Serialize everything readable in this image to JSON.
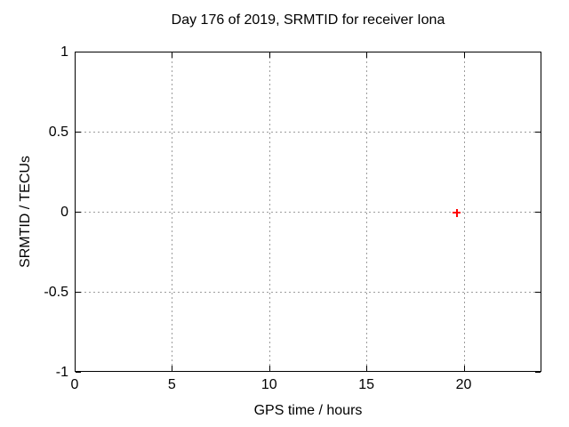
{
  "figure": {
    "background": "#ffffff",
    "text_color": "#000000",
    "axis_color": "#000000"
  },
  "chart_data": {
    "type": "scatter",
    "title": "Day 176 of 2019, SRMTID for receiver Iona",
    "xlabel": "GPS time / hours",
    "ylabel": "SRMTID / TECUs",
    "xlim": [
      0,
      24
    ],
    "ylim": [
      -1,
      1
    ],
    "xticks": [
      {
        "value": 0,
        "label": "0"
      },
      {
        "value": 5,
        "label": "5"
      },
      {
        "value": 10,
        "label": "10"
      },
      {
        "value": 15,
        "label": "15"
      },
      {
        "value": 20,
        "label": "20"
      }
    ],
    "yticks": [
      {
        "value": -1,
        "label": "-1"
      },
      {
        "value": -0.5,
        "label": "-0.5"
      },
      {
        "value": 0,
        "label": "0"
      },
      {
        "value": 0.5,
        "label": "0.5"
      },
      {
        "value": 1,
        "label": "1"
      }
    ],
    "grid": {
      "show": true,
      "style": "dotted",
      "color": "#9c9c9c"
    },
    "legend": "none",
    "series": [
      {
        "name": "SRMTID",
        "marker": "plus",
        "color": "#ff0000",
        "points": [
          {
            "x": 19.6,
            "y": 0
          }
        ]
      }
    ]
  }
}
